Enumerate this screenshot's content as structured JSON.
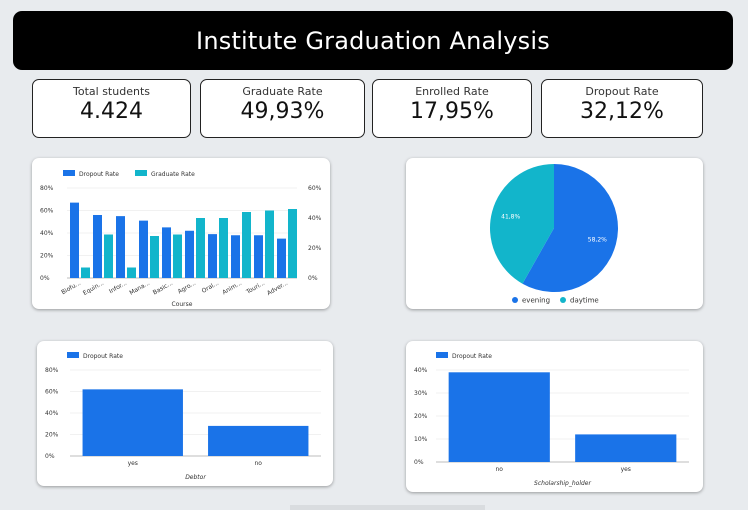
{
  "header": {
    "title": "Institute Graduation Analysis"
  },
  "kpis": [
    {
      "label": "Total students",
      "value": "4.424"
    },
    {
      "label": "Graduate Rate",
      "value": "49,93%"
    },
    {
      "label": "Enrolled Rate",
      "value": "17,95%"
    },
    {
      "label": "Dropout Rate",
      "value": "32,12%"
    }
  ],
  "colors": {
    "dropout": "#1a73e8",
    "graduate": "#12b5cb",
    "pie_evening": "#1a73e8",
    "pie_daytime": "#12b5cb"
  },
  "chart_data": [
    {
      "type": "bar",
      "categories": [
        "Biofu...",
        "Equin...",
        "Infor...",
        "Mana...",
        "Basic...",
        "Agro...",
        "Oral...",
        "Anim...",
        "Touri...",
        "Adver..."
      ],
      "series": [
        {
          "name": "Dropout Rate",
          "values": [
            67,
            56,
            55,
            51,
            45,
            42,
            39,
            38,
            38,
            35
          ],
          "axis": "left"
        },
        {
          "name": "Graduate Rate",
          "values": [
            7,
            29,
            7,
            28,
            29,
            40,
            40,
            44,
            45,
            46
          ],
          "axis": "right"
        }
      ],
      "xlabel": "Course",
      "ylim_left": [
        0,
        80
      ],
      "ylim_right": [
        0,
        60
      ],
      "yticks_left": [
        "80%",
        "60%",
        "40%",
        "20%",
        "0%"
      ],
      "yticks_right": [
        "60%",
        "40%",
        "20%",
        "0%"
      ],
      "legend": "top-left",
      "grid": true
    },
    {
      "type": "pie",
      "labels": [
        "evening",
        "daytime"
      ],
      "values": [
        58.2,
        41.8
      ],
      "value_labels": [
        "58,2%",
        "41,8%"
      ],
      "legend": "bottom"
    },
    {
      "type": "bar",
      "categories": [
        "yes",
        "no"
      ],
      "series": [
        {
          "name": "Dropout Rate",
          "values": [
            62,
            28
          ]
        }
      ],
      "xlabel": "Debtor",
      "ylim": [
        0,
        80
      ],
      "yticks": [
        "80%",
        "60%",
        "40%",
        "20%",
        "0%"
      ],
      "legend": "top-left",
      "grid": true
    },
    {
      "type": "bar",
      "categories": [
        "no",
        "yes"
      ],
      "series": [
        {
          "name": "Dropout Rate",
          "values": [
            39,
            12
          ]
        }
      ],
      "xlabel": "Scholarship_holder",
      "ylim": [
        0,
        40
      ],
      "yticks": [
        "40%",
        "30%",
        "20%",
        "10%",
        "0%"
      ],
      "legend": "top-left",
      "grid": true
    }
  ]
}
